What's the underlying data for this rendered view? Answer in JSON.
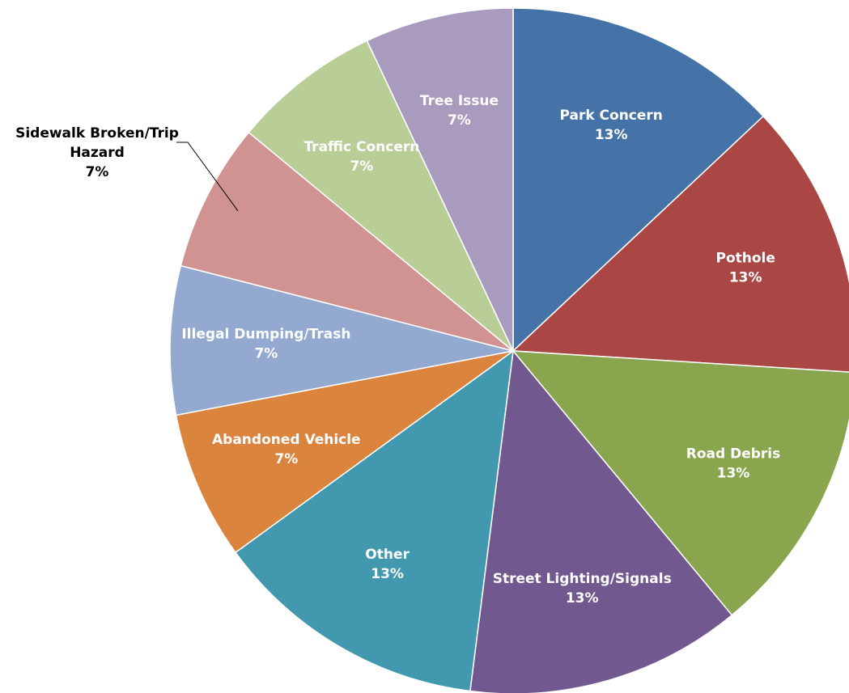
{
  "chart_data": {
    "type": "pie",
    "start": "12 o'clock",
    "direction": "clockwise",
    "slices": [
      {
        "label": "Park Concern",
        "value": 13,
        "pct_label": "13%",
        "color": "#4572A7",
        "label_lines": [
          "Park Concern"
        ]
      },
      {
        "label": "Pothole",
        "value": 13,
        "pct_label": "13%",
        "color": "#AA4643",
        "label_lines": [
          "Pothole"
        ]
      },
      {
        "label": "Road Debris",
        "value": 13,
        "pct_label": "13%",
        "color": "#89A54E",
        "label_lines": [
          "Road Debris"
        ]
      },
      {
        "label": "Street Lighting/Signals",
        "value": 13,
        "pct_label": "13%",
        "color": "#71588F",
        "label_lines": [
          "Street Lighting/Signals"
        ]
      },
      {
        "label": "Other",
        "value": 13,
        "pct_label": "13%",
        "color": "#4198AF",
        "label_lines": [
          "Other"
        ]
      },
      {
        "label": "Abandoned Vehicle",
        "value": 7,
        "pct_label": "7%",
        "color": "#DB843D",
        "label_lines": [
          "Abandoned Vehicle"
        ]
      },
      {
        "label": "Illegal Dumping/Trash",
        "value": 7,
        "pct_label": "7%",
        "color": "#93A9CF",
        "label_lines": [
          "Illegal Dumping/Trash"
        ]
      },
      {
        "label": "Sidewalk Broken/Trip Hazard",
        "value": 7,
        "pct_label": "7%",
        "color": "#D19392",
        "label_lines": [
          "Sidewalk Broken/Trip",
          "Hazard"
        ],
        "outside": true
      },
      {
        "label": "Traffic Concern",
        "value": 7,
        "pct_label": "7%",
        "color": "#B9CD96",
        "label_lines": [
          "Traffic Concern"
        ]
      },
      {
        "label": "Tree Issue",
        "value": 7,
        "pct_label": "7%",
        "color": "#A99BBD",
        "label_lines": [
          "Tree Issue"
        ]
      }
    ]
  }
}
